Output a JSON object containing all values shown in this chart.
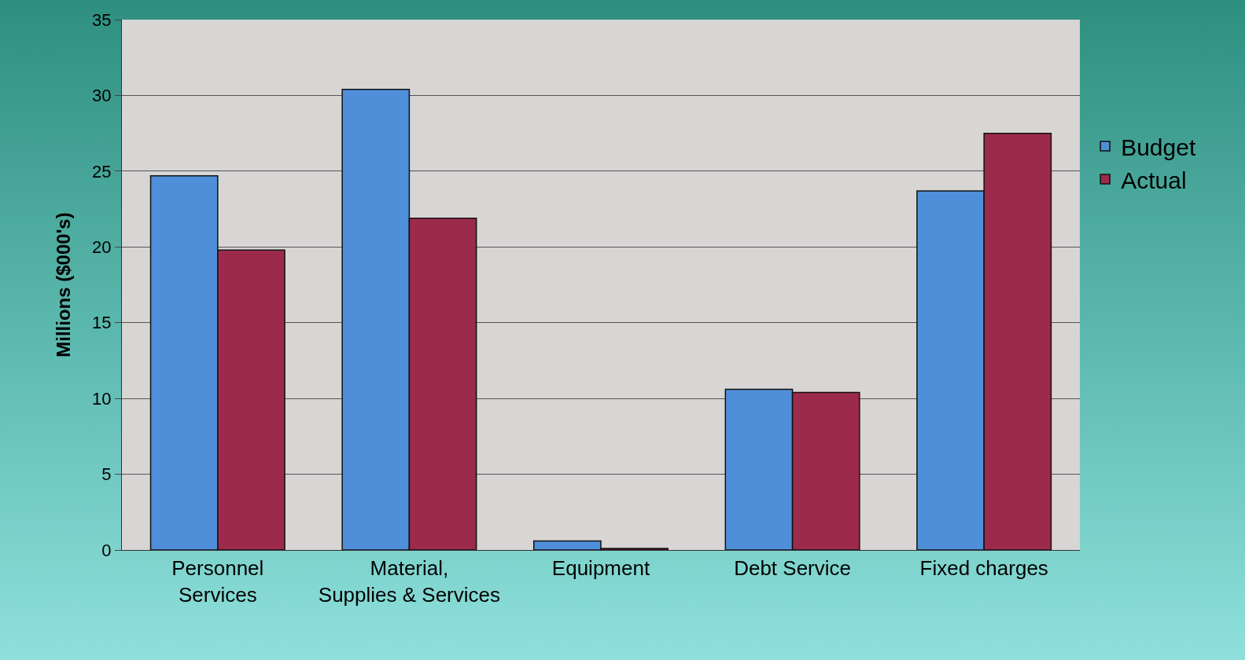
{
  "chart_data": {
    "type": "bar",
    "ylabel": "Millions ($000's)",
    "categories": [
      "Personnel Services",
      "Material, Supplies & Services",
      "Equipment",
      "Debt Service",
      "Fixed charges"
    ],
    "series": [
      {
        "name": "Budget",
        "color": "#4f8fd9",
        "values": [
          24.7,
          30.4,
          0.6,
          10.6,
          23.7
        ]
      },
      {
        "name": "Actual",
        "color": "#9c2b4b",
        "values": [
          19.8,
          21.9,
          0.1,
          10.4,
          27.5
        ]
      }
    ],
    "ylim": [
      0,
      35
    ],
    "yticks": [
      0,
      5,
      10,
      15,
      20,
      25,
      30,
      35
    ],
    "grid": "y",
    "legend": "right"
  }
}
